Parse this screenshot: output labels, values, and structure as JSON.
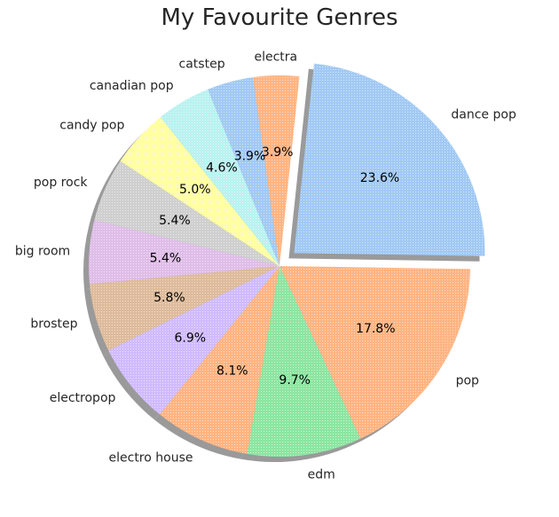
{
  "chart_data": {
    "type": "pie",
    "title": "My Favourite Genres",
    "shadow": true,
    "exploded": "dance pop",
    "slices": [
      {
        "label": "dance pop",
        "value": 23.6,
        "pct_label": "23.6%",
        "color": "#a1c9f4"
      },
      {
        "label": "pop",
        "value": 17.8,
        "pct_label": "17.8%",
        "color": "#ffb482"
      },
      {
        "label": "edm",
        "value": 9.7,
        "pct_label": "9.7%",
        "color": "#8de5a1"
      },
      {
        "label": "electro house",
        "value": 8.1,
        "pct_label": "8.1%",
        "color": "#ffb482"
      },
      {
        "label": "electropop",
        "value": 6.9,
        "pct_label": "6.9%",
        "color": "#d0bbff"
      },
      {
        "label": "brostep",
        "value": 5.8,
        "pct_label": "5.8%",
        "color": "#debb9b"
      },
      {
        "label": "big room",
        "value": 5.4,
        "pct_label": "5.4%",
        "color": "#dfbde8"
      },
      {
        "label": "pop rock",
        "value": 5.4,
        "pct_label": "5.4%",
        "color": "#cfcfcf"
      },
      {
        "label": "candy pop",
        "value": 5.0,
        "pct_label": "5.0%",
        "color": "#fffea3"
      },
      {
        "label": "canadian pop",
        "value": 4.6,
        "pct_label": "4.6%",
        "color": "#b9f2f0"
      },
      {
        "label": "catstep",
        "value": 3.9,
        "pct_label": "3.9%",
        "color": "#a1c9f4"
      },
      {
        "label": "electra",
        "value": 3.9,
        "pct_label": "3.9%",
        "color": "#ffb482"
      }
    ]
  }
}
